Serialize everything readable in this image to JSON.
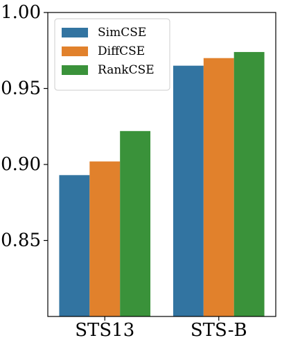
{
  "chart_data": {
    "type": "bar",
    "categories": [
      "STS13",
      "STS-B"
    ],
    "series": [
      {
        "name": "SimCSE",
        "color": "#3274a1",
        "values": [
          0.893,
          0.965
        ]
      },
      {
        "name": "DiffCSE",
        "color": "#e1812c",
        "values": [
          0.902,
          0.97
        ]
      },
      {
        "name": "RankCSE",
        "color": "#3a923a",
        "values": [
          0.922,
          0.974
        ]
      }
    ],
    "ylim": [
      0.8,
      1.0
    ],
    "yticks": [
      0.85,
      0.9,
      0.95,
      1.0
    ],
    "ytick_labels": [
      "0.85",
      "0.90",
      "0.95",
      "1.00"
    ],
    "legend_position": "top-left",
    "grid": false
  }
}
